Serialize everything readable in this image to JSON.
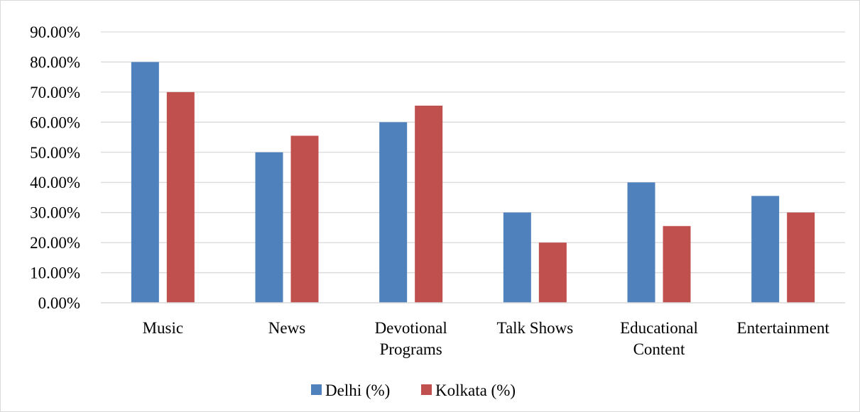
{
  "chart_data": {
    "type": "bar",
    "title": "",
    "xlabel": "",
    "ylabel": "",
    "categories": [
      [
        "Music"
      ],
      [
        "News"
      ],
      [
        "Devotional",
        "Programs"
      ],
      [
        "Talk Shows"
      ],
      [
        "Educational",
        "Content"
      ],
      [
        "Entertainment"
      ]
    ],
    "series": [
      {
        "name": "Delhi (%)",
        "color": "#4f81bd",
        "values": [
          80,
          50,
          60,
          30,
          40,
          35.5
        ]
      },
      {
        "name": "Kolkata (%)",
        "color": "#c0504d",
        "values": [
          70,
          55.5,
          65.5,
          20,
          25.5,
          30
        ]
      }
    ],
    "ylim": [
      0,
      90
    ],
    "y_ticks": [
      0,
      10,
      20,
      30,
      40,
      50,
      60,
      70,
      80,
      90
    ],
    "y_tick_labels": [
      "0.00%",
      "10.00%",
      "20.00%",
      "30.00%",
      "40.00%",
      "50.00%",
      "60.00%",
      "70.00%",
      "80.00%",
      "90.00%"
    ],
    "grid": true,
    "gridline_color": "#d9d9d9",
    "legend_position": "bottom"
  }
}
